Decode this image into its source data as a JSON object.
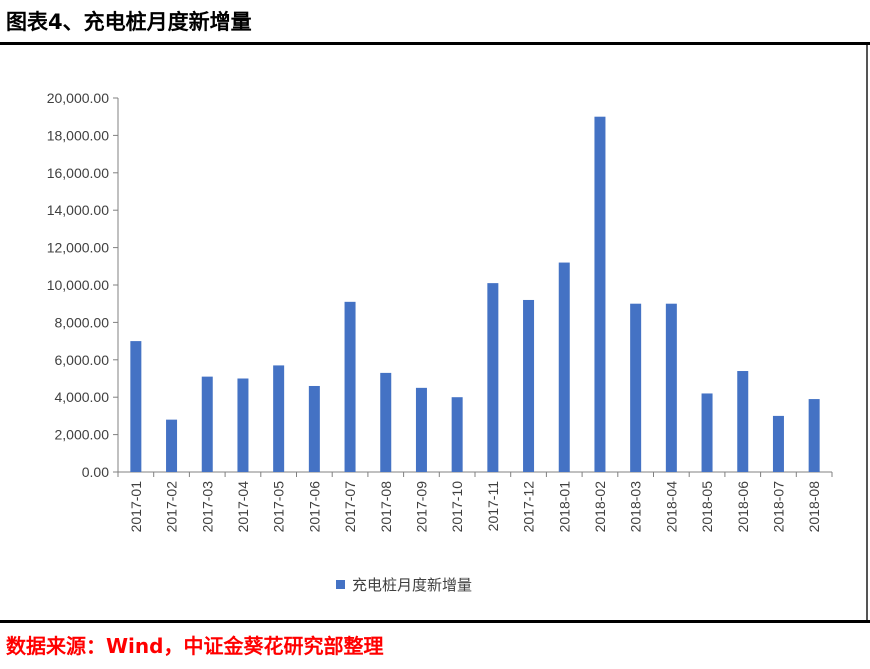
{
  "header": {
    "title": "图表4、充电桩月度新增量"
  },
  "footer": {
    "source": "数据来源：Wind，中证金葵花研究部整理"
  },
  "chart_data": {
    "type": "bar",
    "title": "",
    "xlabel": "",
    "ylabel": "",
    "categories": [
      "2017-01",
      "2017-02",
      "2017-03",
      "2017-04",
      "2017-05",
      "2017-06",
      "2017-07",
      "2017-08",
      "2017-09",
      "2017-10",
      "2017-11",
      "2017-12",
      "2018-01",
      "2018-02",
      "2018-03",
      "2018-04",
      "2018-05",
      "2018-06",
      "2018-07",
      "2018-08"
    ],
    "series": [
      {
        "name": "充电桩月度新增量",
        "values": [
          7000,
          2800,
          5100,
          5000,
          5700,
          4600,
          9100,
          5300,
          4500,
          4000,
          10100,
          9200,
          11200,
          19000,
          9000,
          9000,
          4200,
          5400,
          3000,
          3900
        ],
        "color": "#4472C4"
      }
    ],
    "ylim": [
      0,
      20000
    ],
    "yticks": [
      "0.00",
      "2,000.00",
      "4,000.00",
      "6,000.00",
      "8,000.00",
      "10,000.00",
      "12,000.00",
      "14,000.00",
      "16,000.00",
      "18,000.00",
      "20,000.00"
    ],
    "grid": false,
    "legend": "bottom"
  }
}
